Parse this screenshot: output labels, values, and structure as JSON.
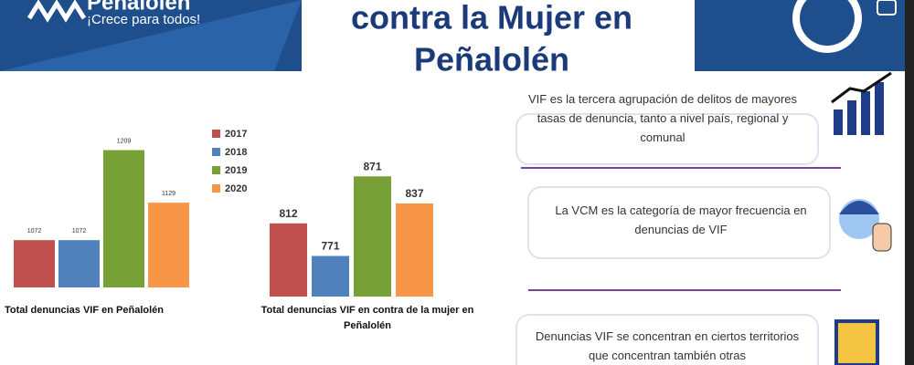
{
  "header": {
    "brand": "Peñalolén",
    "tagline": "¡Crece para todos!",
    "title_lines": [
      "contra la Mujer en",
      "Peñalolén"
    ]
  },
  "chart_data": [
    {
      "type": "bar",
      "title": "Total denuncias VIF en Peñalolén",
      "ylim": [
        1000,
        1250
      ],
      "series": [
        {
          "name": "2017",
          "color": "#c0504d",
          "values": [
            1072
          ]
        },
        {
          "name": "2018",
          "color": "#4f81bd",
          "values": [
            1072
          ]
        },
        {
          "name": "2019",
          "color": "#77a036",
          "values": [
            1209
          ]
        },
        {
          "name": "2020",
          "color": "#f79646",
          "values": [
            1129
          ]
        }
      ]
    },
    {
      "type": "bar",
      "title": "Total denuncias VIF en contra de la mujer en Peñalolén",
      "ylim": [
        720,
        900
      ],
      "series": [
        {
          "color": "#c0504d",
          "values": [
            812
          ]
        },
        {
          "color": "#4f81bd",
          "values": [
            771
          ]
        },
        {
          "color": "#77a036",
          "values": [
            871
          ]
        },
        {
          "color": "#f79646",
          "values": [
            837
          ]
        }
      ]
    }
  ],
  "notes": [
    "VIF es la tercera agrupación de delitos de mayores tasas de denuncia, tanto a nivel país, regional y comunal",
    "La VCM es la categoría de mayor frecuencia en denuncias de VIF",
    "Denuncias VIF se concentran en ciertos territorios que concentran también otras"
  ]
}
